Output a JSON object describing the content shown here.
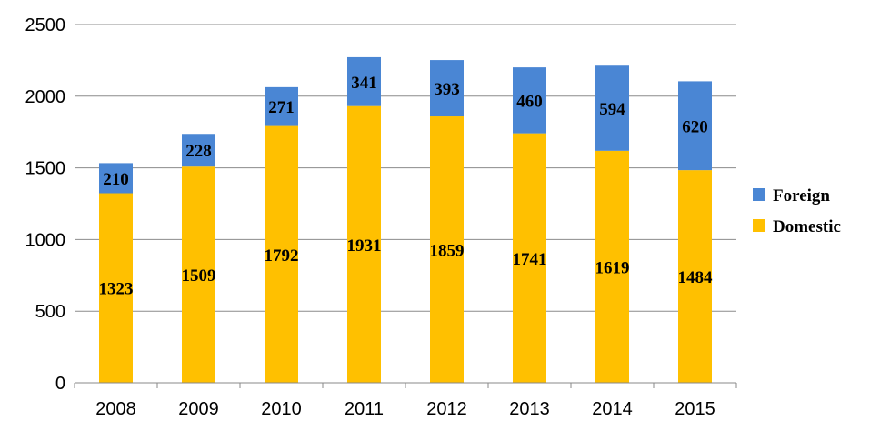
{
  "chart_data": {
    "type": "bar",
    "stacked": true,
    "title": "",
    "xlabel": "",
    "ylabel": "",
    "categories": [
      "2008",
      "2009",
      "2010",
      "2011",
      "2012",
      "2013",
      "2014",
      "2015"
    ],
    "series": [
      {
        "name": "Domestic",
        "color": "#FFC000",
        "values": [
          1323,
          1509,
          1792,
          1931,
          1859,
          1741,
          1619,
          1484
        ]
      },
      {
        "name": "Foreign",
        "color": "#4A86D4",
        "values": [
          210,
          228,
          271,
          341,
          393,
          460,
          594,
          620
        ]
      }
    ],
    "ylim": [
      0,
      2500
    ],
    "yticks": [
      0,
      500,
      1000,
      1500,
      2000,
      2500
    ],
    "grid": true,
    "legend_position": "right",
    "legend_order": [
      "Foreign",
      "Domestic"
    ]
  }
}
